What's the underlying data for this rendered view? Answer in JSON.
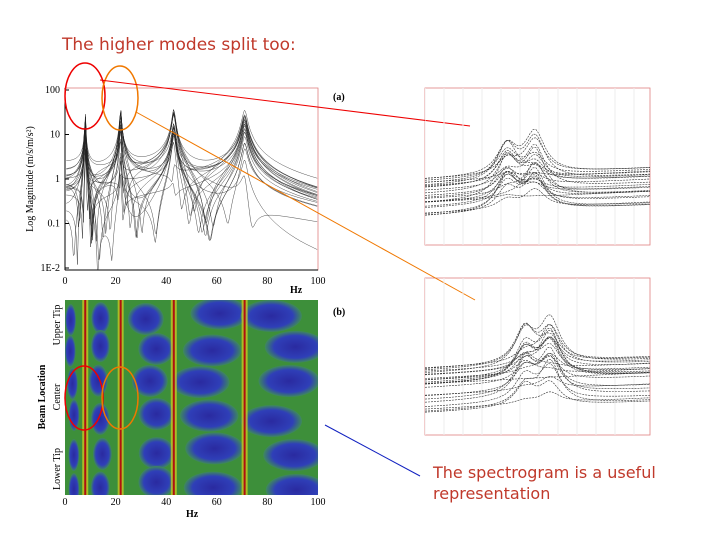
{
  "title": "The higher modes split too:",
  "panel_a": {
    "label": "(a)",
    "y_label": "Log Magnitude (m/s/m/s²)",
    "x_label": "Hz",
    "yticks": [
      "100",
      "10",
      "1",
      "0.1",
      "1E-2"
    ],
    "xticks": [
      "0",
      "20",
      "40",
      "60",
      "80",
      "100"
    ]
  },
  "panel_b": {
    "label": "(b)",
    "y_label": "Beam Location",
    "locations": [
      "Upper Tip",
      "Center",
      "Lower Tip"
    ],
    "x_label": "Hz",
    "xticks": [
      "0",
      "20",
      "40",
      "60",
      "80",
      "100"
    ]
  },
  "caption": [
    "The spectrogram is a useful",
    "representation"
  ]
}
